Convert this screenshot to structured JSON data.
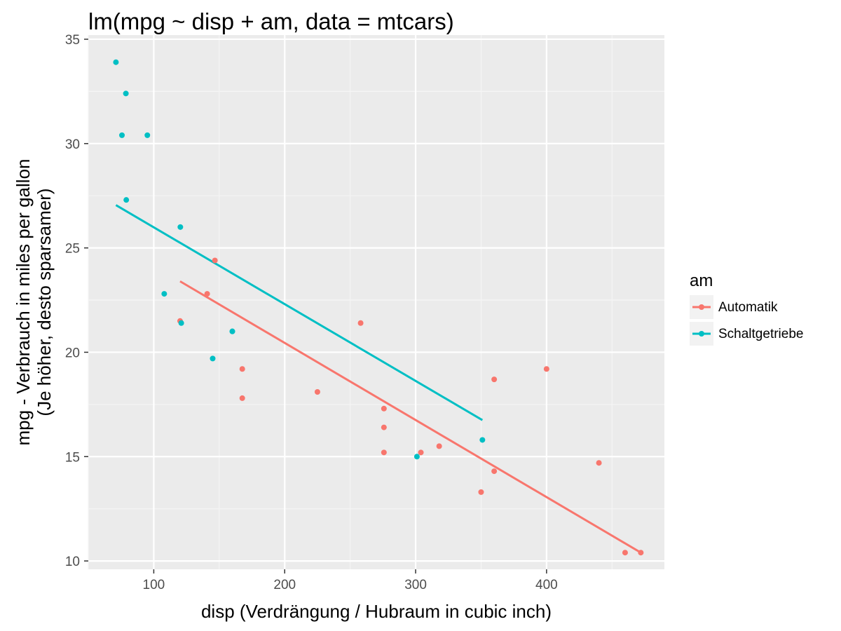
{
  "chart_data": {
    "type": "scatter",
    "title": "lm(mpg ~ disp + am, data = mtcars)",
    "xlabel": "disp (Verdrängung / Hubraum in cubic inch)",
    "ylabel_lines": [
      "mpg - Verbrauch in miles per gallon",
      "(Je höher, desto sparsamer)"
    ],
    "xlim": [
      50,
      490
    ],
    "ylim": [
      9.6,
      35.2
    ],
    "x_ticks": [
      100,
      200,
      300,
      400
    ],
    "y_ticks": [
      10,
      15,
      20,
      25,
      30,
      35
    ],
    "grid": true,
    "legend": {
      "title": "am",
      "position": "right"
    },
    "series": [
      {
        "name": "Automatik",
        "color": "#F8766D",
        "points": [
          [
            258,
            21.4
          ],
          [
            360,
            18.7
          ],
          [
            225,
            18.1
          ],
          [
            146.7,
            24.4
          ],
          [
            140.8,
            22.8
          ],
          [
            167.6,
            19.2
          ],
          [
            167.6,
            17.8
          ],
          [
            275.8,
            16.4
          ],
          [
            275.8,
            17.3
          ],
          [
            275.8,
            15.2
          ],
          [
            472,
            10.4
          ],
          [
            460,
            10.4
          ],
          [
            440,
            14.7
          ],
          [
            120.1,
            21.5
          ],
          [
            318,
            15.5
          ],
          [
            304,
            15.2
          ],
          [
            350,
            13.3
          ],
          [
            400,
            19.2
          ],
          [
            360,
            14.3
          ]
        ],
        "fit_line": [
          [
            120.1,
            23.4
          ],
          [
            472,
            10.4
          ]
        ]
      },
      {
        "name": "Schaltgetriebe",
        "color": "#00BFC4",
        "points": [
          [
            160,
            21.0
          ],
          [
            160,
            21.0
          ],
          [
            108,
            22.8
          ],
          [
            78.7,
            32.4
          ],
          [
            75.7,
            30.4
          ],
          [
            71.1,
            33.9
          ],
          [
            79,
            27.3
          ],
          [
            120.3,
            26.0
          ],
          [
            95.1,
            30.4
          ],
          [
            351,
            15.8
          ],
          [
            145,
            19.7
          ],
          [
            301,
            15.0
          ],
          [
            121,
            21.4
          ]
        ],
        "fit_line": [
          [
            71.1,
            27.05
          ],
          [
            351,
            16.75
          ]
        ]
      }
    ]
  }
}
